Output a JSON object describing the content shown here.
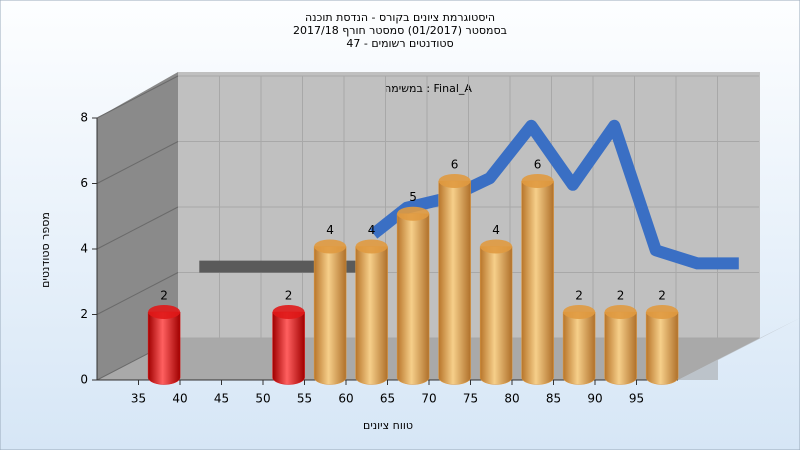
{
  "chart_data": {
    "type": "histogram",
    "title_lines": [
      "היסטוגרמת ציונים בקורס - הנדסת תוכנה",
      "בסמסטר (01/2017) סמסטר חורף 2017/18",
      "סטודנטים רשומים - 47"
    ],
    "annotation": "Final_A : במשימה",
    "x_label": "טווח ציונים",
    "y_label": "מספר סטודנטים",
    "bins": [
      35,
      40,
      45,
      50,
      55,
      60,
      65,
      70,
      75,
      80,
      85,
      90,
      95,
      100
    ],
    "values": [
      2,
      0,
      0,
      2,
      4,
      4,
      5,
      6,
      4,
      6,
      2,
      2,
      2
    ],
    "bar_colors": [
      "#e01818",
      "#e01818",
      "#e01818",
      "#e01818",
      "#e09a40",
      "#e09a40",
      "#e09a40",
      "#e09a40",
      "#e09a40",
      "#e09a40",
      "#e09a40",
      "#e09a40",
      "#e09a40"
    ],
    "xlim": [
      30,
      100
    ],
    "xticks": [
      35,
      40,
      45,
      50,
      55,
      60,
      65,
      70,
      75,
      80,
      85,
      90,
      95
    ],
    "ylim": [
      0,
      8
    ],
    "yticks": [
      0,
      2,
      4,
      6,
      8
    ],
    "grid": true,
    "curves": [
      {
        "color": "#5a5a5a",
        "x": [
          35,
          55
        ],
        "values": [
          2.5,
          2.5
        ]
      },
      {
        "color": "#3a6fc4",
        "x": [
          56,
          60,
          65,
          70,
          75,
          80,
          85,
          90,
          95,
          100
        ],
        "values": [
          3.5,
          4.3,
          4.6,
          5.2,
          6.8,
          5,
          6.8,
          3,
          2.6,
          2.6
        ]
      }
    ]
  }
}
